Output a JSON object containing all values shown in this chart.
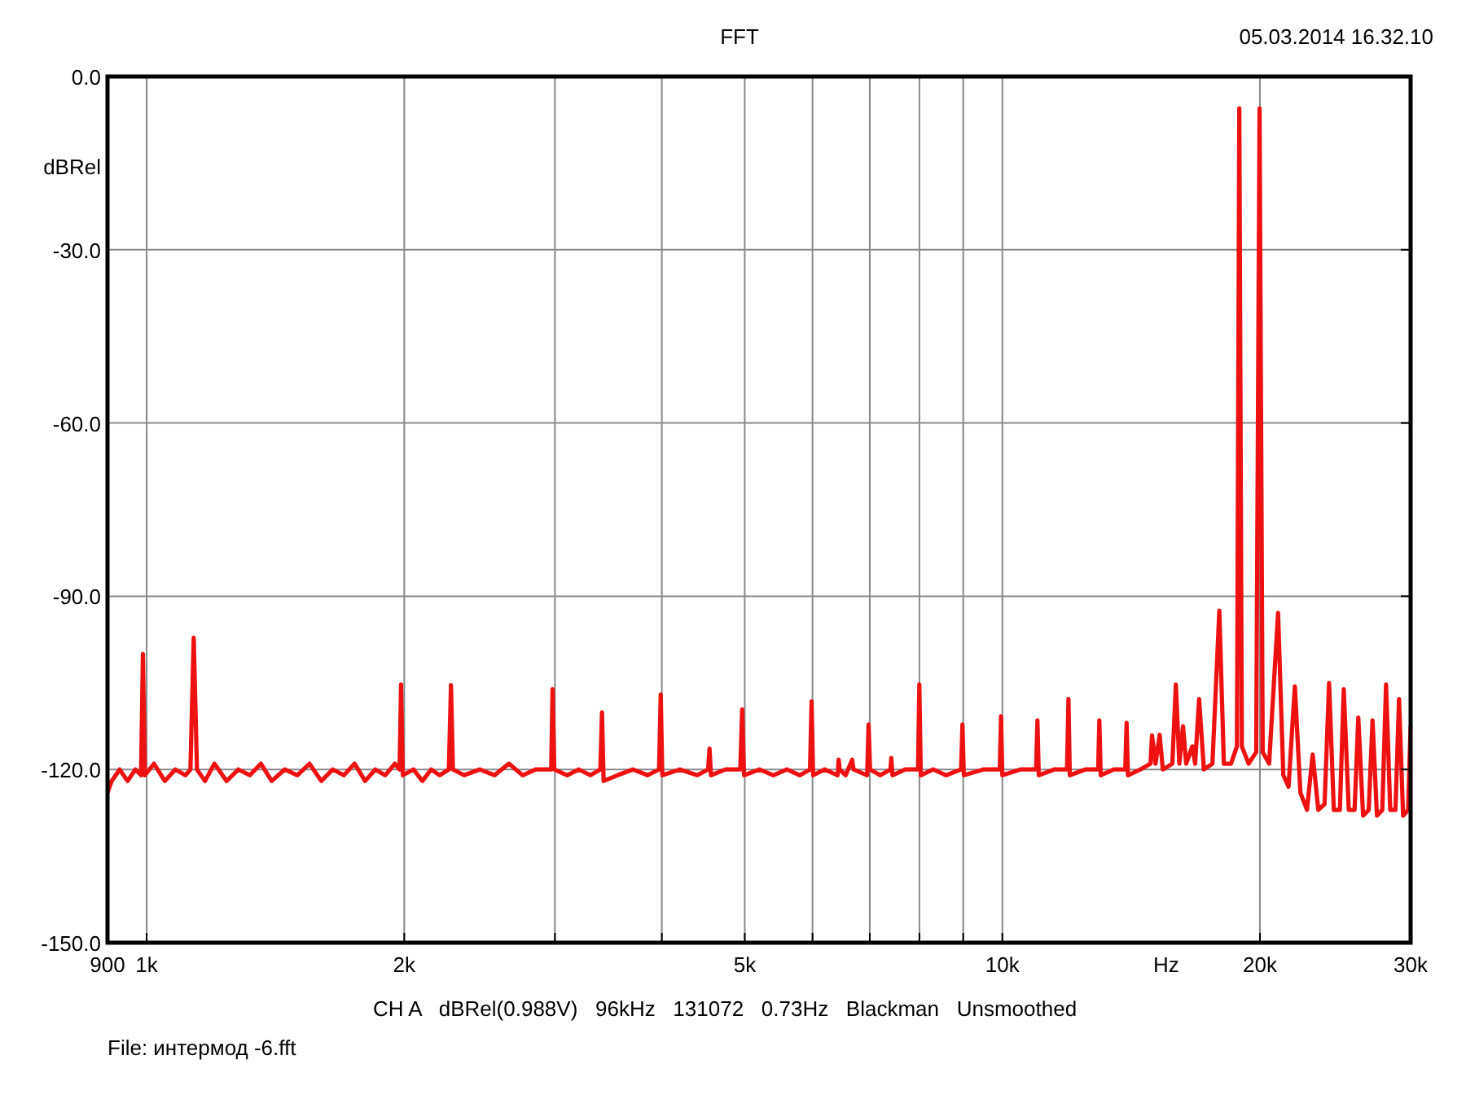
{
  "chart_data": {
    "type": "line",
    "title": "FFT",
    "xlabel": "Hz",
    "ylabel": "dBRel",
    "log": "x",
    "grid": true,
    "marker": "none",
    "line_style": "solid",
    "xlim": [
      900,
      30000
    ],
    "xticks": [
      900,
      {
        "value": 1000,
        "label": "1k"
      },
      {
        "value": 2000,
        "label": "2k"
      },
      {
        "value": 3000,
        "label": null
      },
      {
        "value": 4000,
        "label": null
      },
      {
        "value": 5000,
        "label": "5k"
      },
      {
        "value": 6000,
        "label": null
      },
      {
        "value": 7000,
        "label": null
      },
      {
        "value": 8000,
        "label": null
      },
      {
        "value": 9000,
        "label": null
      },
      {
        "value": 10000,
        "label": "10k"
      },
      {
        "value": 20000,
        "label": "20k"
      },
      {
        "value": 30000,
        "label": "30k"
      }
    ],
    "ylim": [
      -150,
      0
    ],
    "yticks": [
      {
        "value": 0,
        "label": "0.0"
      },
      {
        "value": -30,
        "label": "-30.0"
      },
      {
        "value": -60,
        "label": "-60.0"
      },
      {
        "value": -90,
        "label": "-90.0"
      },
      {
        "value": -120,
        "label": "-120.0"
      },
      {
        "value": -150,
        "label": "-150.0"
      }
    ],
    "annotations": [
      "05.03.2014 16.32.10",
      "CH A   dBRel(0.988V)   96kHz   131072   0.73Hz   Blackman   Unsmoothed",
      "File: интермод -6.fft"
    ],
    "series": [
      {
        "color": "#ee1111",
        "x": [
          900,
          910,
          930,
          950,
          970,
          985,
          990,
          995,
          1020,
          1050,
          1080,
          1110,
          1125,
          1135,
          1145,
          1170,
          1200,
          1240,
          1280,
          1320,
          1360,
          1400,
          1450,
          1500,
          1550,
          1600,
          1650,
          1700,
          1750,
          1800,
          1850,
          1900,
          1950,
          1975,
          1983,
          1992,
          2050,
          2100,
          2150,
          2200,
          2255,
          2268,
          2280,
          2350,
          2450,
          2550,
          2650,
          2750,
          2850,
          2970,
          2981,
          2995,
          3100,
          3200,
          3300,
          3390,
          3405,
          3420,
          3550,
          3700,
          3850,
          3970,
          3988,
          4005,
          4200,
          4400,
          4530,
          4548,
          4565,
          4750,
          4940,
          4965,
          4990,
          5200,
          5400,
          5600,
          5800,
          5960,
          5985,
          6010,
          6200,
          6420,
          6437,
          6455,
          6560,
          6675,
          6700,
          6950,
          6977,
          7005,
          7200,
          7400,
          7417,
          7440,
          7700,
          7970,
          7998,
          8030,
          8300,
          8600,
          8950,
          8982,
          9015,
          9500,
          9930,
          9965,
          10000,
          10500,
          10950,
          10990,
          11030,
          11500,
          11900,
          11947,
          11990,
          12500,
          12940,
          12983,
          13030,
          13500,
          13920,
          13970,
          14020,
          14500,
          14900,
          14958,
          15100,
          15270,
          15400,
          15800,
          15950,
          16100,
          16260,
          16400,
          16670,
          16800,
          16980,
          17200,
          17600,
          17930,
          18150,
          18500,
          18800,
          18920,
          19050,
          19400,
          19800,
          19980,
          20150,
          20500,
          21000,
          21300,
          21600,
          21970,
          22300,
          22700,
          23050,
          23400,
          23800,
          24090,
          24400,
          24800,
          25060,
          25400,
          25800,
          26060,
          26400,
          26800,
          27080,
          27400,
          27800,
          28080,
          28400,
          28800,
          29080,
          29400,
          29800,
          30000
        ],
        "values": [
          -124,
          -122,
          -120,
          -122,
          -120,
          -121,
          -100,
          -121,
          -119,
          -122,
          -120,
          -121,
          -120,
          -97.2,
          -120,
          -122,
          -119,
          -122,
          -120,
          -121,
          -119,
          -122,
          -120,
          -121,
          -119,
          -122,
          -120,
          -121,
          -119,
          -122,
          -120,
          -121,
          -119,
          -120,
          -105.3,
          -121,
          -120,
          -122,
          -120,
          -121,
          -120,
          -105.4,
          -120,
          -121,
          -120,
          -121,
          -119,
          -121,
          -120,
          -120,
          -106.1,
          -120,
          -121,
          -120,
          -121,
          -120,
          -110.1,
          -122,
          -121,
          -120,
          -121,
          -120,
          -107,
          -121,
          -120,
          -121,
          -120,
          -116.4,
          -121,
          -120,
          -120,
          -109.6,
          -121,
          -120,
          -121,
          -120,
          -121,
          -120,
          -108.2,
          -121,
          -120,
          -121,
          -118.3,
          -120,
          -121,
          -118.3,
          -120,
          -121,
          -112.2,
          -120,
          -121,
          -120,
          -118,
          -121,
          -120,
          -120,
          -105.3,
          -121,
          -120,
          -121,
          -120,
          -112.2,
          -121,
          -120,
          -120,
          -110.8,
          -121,
          -120,
          -120,
          -111.5,
          -121,
          -120,
          -120,
          -107.8,
          -121,
          -120,
          -120,
          -111.5,
          -121,
          -120,
          -120,
          -111.9,
          -121,
          -120,
          -119,
          -114.1,
          -119,
          -114,
          -120,
          -119,
          -105.3,
          -119,
          -112.5,
          -119,
          -116,
          -119,
          -107.8,
          -120,
          -119,
          -92.5,
          -119,
          -119,
          -116,
          -5.5,
          -116,
          -119,
          -117,
          -5.5,
          -117,
          -119,
          -92.9,
          -121,
          -123,
          -105.6,
          -124,
          -127,
          -117.4,
          -127,
          -126,
          -105,
          -127,
          -127,
          -106.1,
          -127,
          -127,
          -111,
          -128,
          -127,
          -111.5,
          -128,
          -127,
          -105.3,
          -127,
          -127,
          -107.8,
          -128,
          -127,
          -112.5
        ]
      }
    ]
  }
}
